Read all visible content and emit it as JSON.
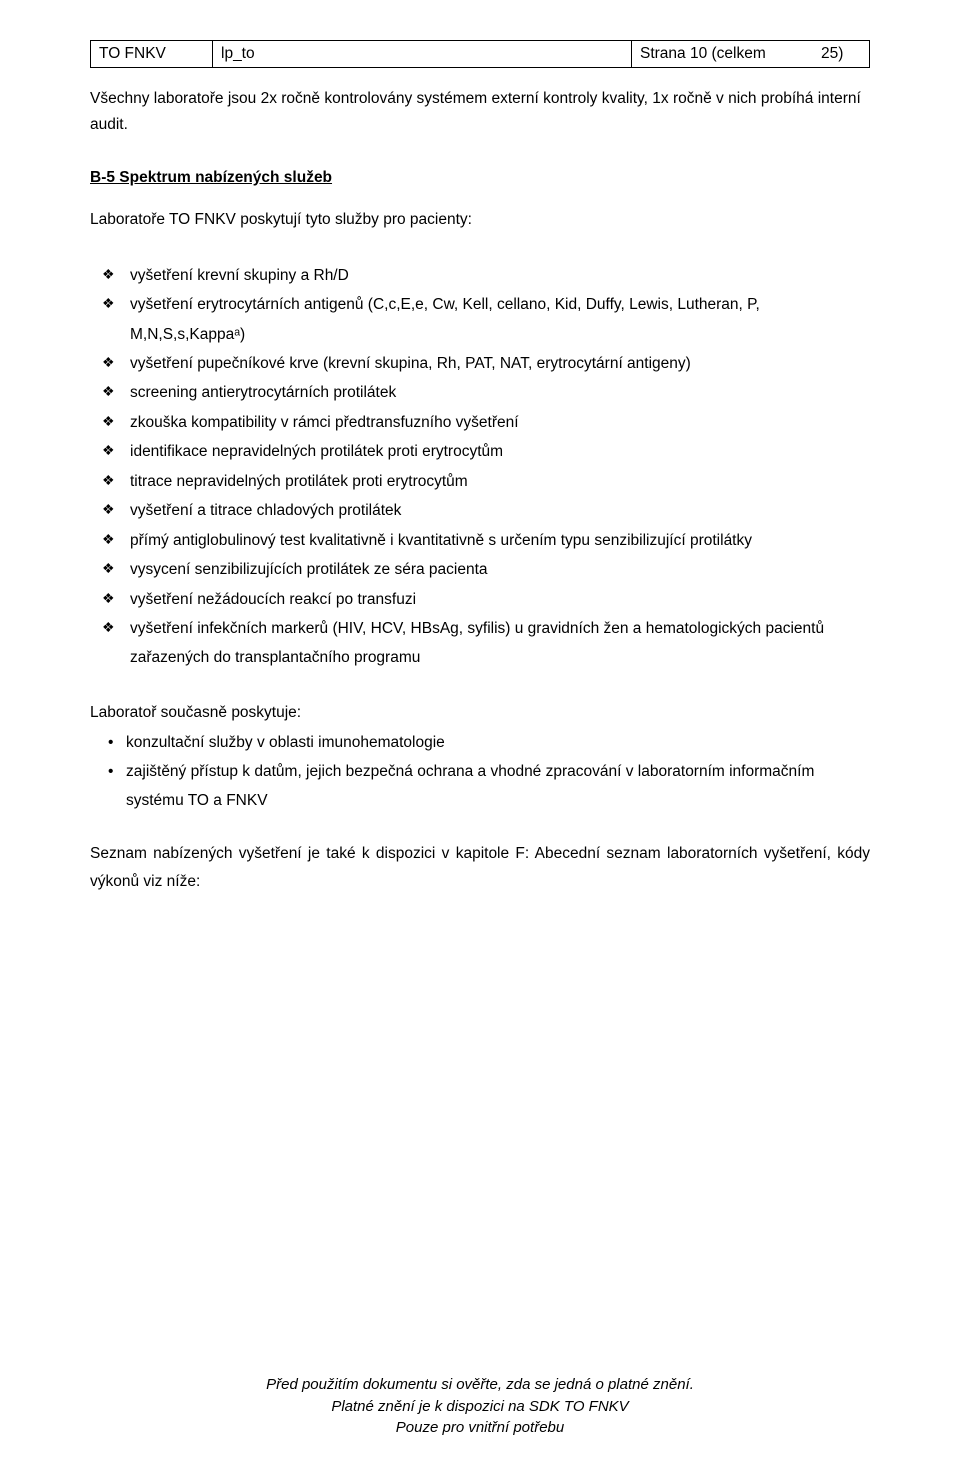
{
  "header": {
    "col1": "TO FNKV",
    "col2": "lp_to",
    "page_label": "Strana 10 (celkem",
    "page_total": "25)"
  },
  "intro": "Všechny laboratoře jsou 2x ročně kontrolovány systémem externí kontroly kvality, 1x ročně v nich probíhá interní audit.",
  "section_title": "B-5  Spektrum nabízených služeb",
  "sub_intro": "Laboratoře TO FNKV poskytují tyto služby pro pacienty:",
  "bullets": [
    "vyšetření krevní skupiny a Rh/D",
    "vyšetření erytrocytárních antigenů (C,c,E,e, Cw, Kell, cellano, Kid, Duffy, Lewis, Lutheran, P, M,N,S,s,Kappaᵃ)",
    "vyšetření pupečníkové krve (krevní skupina, Rh, PAT, NAT, erytrocytární antigeny)",
    "screening antierytrocytárních protilátek",
    "zkouška kompatibility v rámci předtransfuzního vyšetření",
    "identifikace nepravidelných protilátek proti erytrocytům",
    "titrace nepravidelných protilátek proti erytrocytům",
    "vyšetření a titrace chladových protilátek",
    "přímý antiglobulinový test kvalitativně i kvantitativně s určením typu senzibilizující protilátky",
    "vysycení senzibilizujících protilátek  ze séra pacienta",
    "vyšetření nežádoucích reakcí po transfuzi",
    "vyšetření infekčních markerů  (HIV, HCV, HBsAg, syfilis) u gravidních žen a hematologických pacientů zařazených do transplantačního programu"
  ],
  "also_provides_label": "Laboratoř současně poskytuje:",
  "also_provides": [
    "konzultační služby v oblasti imunohematologie",
    "zajištěný přístup k datům, jejich bezpečná ochrana a vhodné zpracování v laboratorním informačním systému TO a FNKV"
  ],
  "closing": "Seznam nabízených vyšetření je také k dispozici v kapitole F: Abecední seznam laboratorních vyšetření, kódy výkonů viz níže:",
  "footer": {
    "l1": "Před použitím dokumentu si ověřte, zda se jedná o platné znění.",
    "l2": "Platné znění je k dispozici na SDK  TO  FNKV",
    "l3": "Pouze pro vnitřní potřebu"
  }
}
